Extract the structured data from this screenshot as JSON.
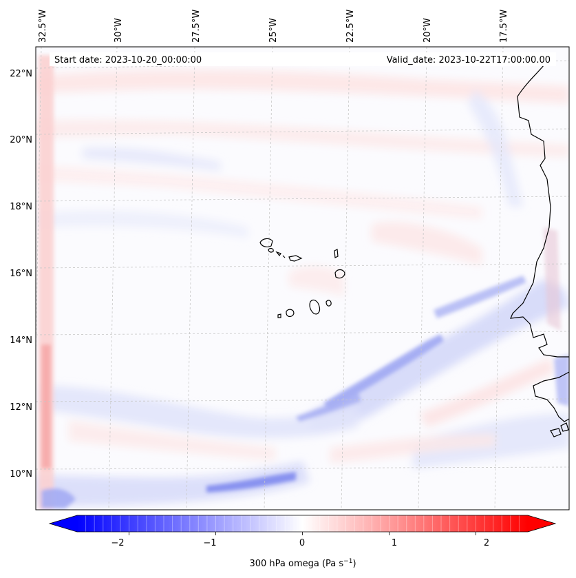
{
  "header": {
    "start_date": "Start date: 2023-10-20_00:00:00",
    "valid_date": "Valid_date: 2023-10-22T17:00:00.00"
  },
  "longitude_labels": [
    "32.5°W",
    "30°W",
    "27.5°W",
    "25°W",
    "22.5°W",
    "20°W",
    "17.5°W"
  ],
  "latitude_labels": [
    "22°N",
    "20°N",
    "18°N",
    "16°N",
    "14°N",
    "12°N",
    "10°N"
  ],
  "colorbar": {
    "tick_labels": [
      "−2",
      "−1",
      "0",
      "1",
      "2"
    ],
    "label_prefix": "300 hPa omega (Pa s",
    "label_sup": "−1",
    "label_suffix": ")",
    "min": -2.6,
    "max": 2.6,
    "colors": {
      "negative": "#0000ff",
      "zero": "#ffffff",
      "positive": "#ff0000"
    }
  },
  "colors": {
    "coastline": "#000000",
    "gridline": "#c8c8c8"
  }
}
